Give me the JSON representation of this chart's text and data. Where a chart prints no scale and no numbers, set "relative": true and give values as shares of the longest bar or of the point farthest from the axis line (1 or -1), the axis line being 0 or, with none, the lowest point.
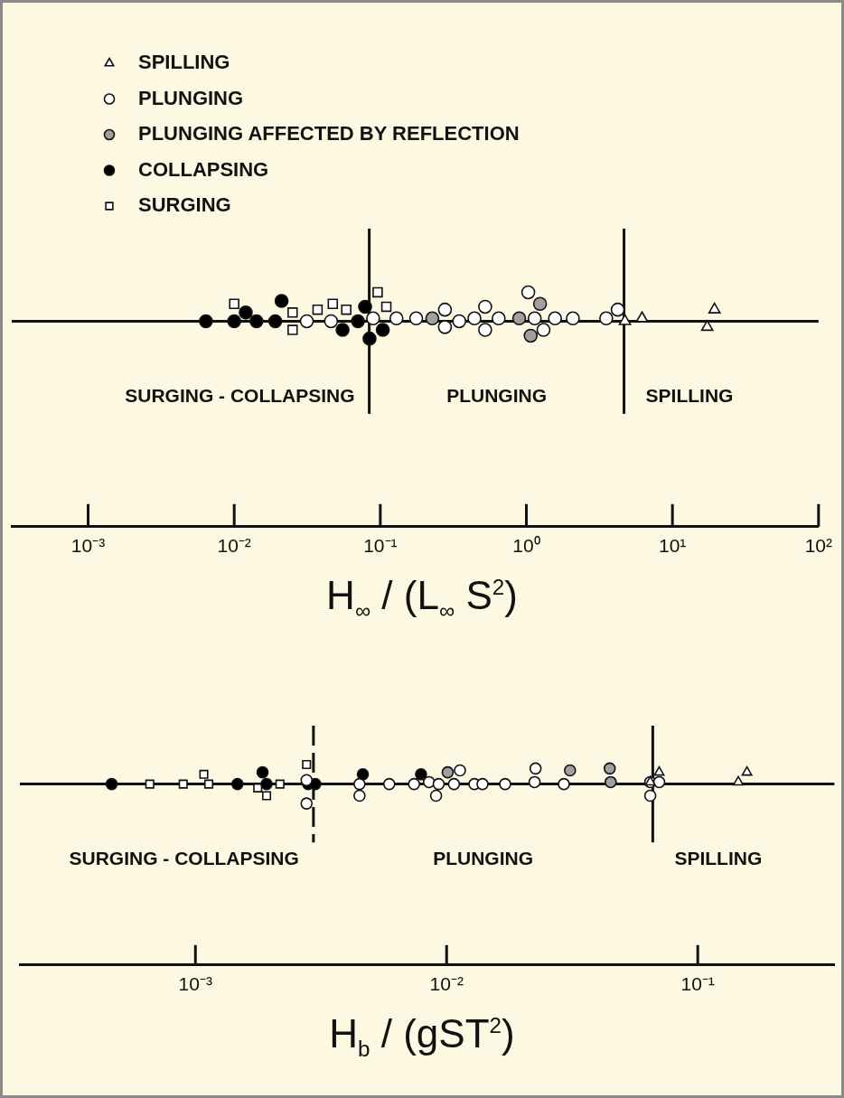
{
  "chart_data": [
    {
      "type": "scatter",
      "relative": true,
      "log": "x",
      "tick_labels": "x",
      "legend": "top left",
      "xlabel": "H$_{∞}$ / (L$_{∞}$ S$^{2}$)",
      "xlim": [
        0.0003,
        100
      ],
      "xticks": [
        {
          "value": 0.001,
          "label": "10⁻³"
        },
        {
          "value": 0.01,
          "label": "10⁻²"
        },
        {
          "value": 0.1,
          "label": "10⁻¹"
        },
        {
          "value": 1,
          "label": "10⁰"
        },
        {
          "value": 10,
          "label": "10¹"
        },
        {
          "value": 100,
          "label": "10²"
        }
      ],
      "series": [
        {
          "name": "SPILLING",
          "marker": "triangle",
          "color": "#ffffff",
          "x": [
            4.73,
            6.19,
            19.4,
            17.3
          ],
          "values": [
            0,
            0.1,
            0.4,
            -0.2
          ]
        },
        {
          "name": "PLUNGING",
          "marker": "circle",
          "color": "#ffffff",
          "x": [
            0.0314,
            0.046,
            0.0893,
            0.129,
            0.176,
            0.277,
            0.277,
            0.347,
            0.441,
            0.522,
            0.522,
            0.646,
            1.03,
            1.14,
            1.31,
            1.57,
            2.08,
            3.52,
            4.22
          ],
          "values": [
            0,
            0,
            0.1,
            0.1,
            0.1,
            0.4,
            -0.2,
            0,
            0.1,
            0.5,
            -0.3,
            0.1,
            1,
            0.1,
            -0.3,
            0.1,
            0.1,
            0.1,
            0.4
          ]
        },
        {
          "name": "PLUNGING AFFECTED BY REFLECTION",
          "marker": "circle",
          "color": "#a0a0a0",
          "x": [
            0.227,
            0.893,
            1.24,
            1.07
          ],
          "values": [
            0.1,
            0.1,
            0.6,
            -0.5
          ]
        },
        {
          "name": "COLLAPSING",
          "marker": "circle",
          "color": "#000000",
          "x": [
            0.0064,
            0.01,
            0.012,
            0.0142,
            0.0191,
            0.0211,
            0.0552,
            0.0703,
            0.0787,
            0.0844,
            0.104
          ],
          "values": [
            0,
            0,
            0.3,
            0,
            0,
            0.7,
            -0.3,
            0,
            0.5,
            -0.6,
            -0.3
          ]
        },
        {
          "name": "SURGING",
          "marker": "square",
          "color": "#ffffff",
          "x": [
            0.01,
            0.0251,
            0.0251,
            0.0372,
            0.0473,
            0.0585,
            0.0959,
            0.11
          ],
          "values": [
            0.6,
            0.3,
            -0.3,
            0.4,
            0.6,
            0.4,
            1,
            0.5
          ]
        }
      ],
      "ref_lines": [
        {
          "axis": "x",
          "value": 0.084
        },
        {
          "axis": "x",
          "value": 4.66
        }
      ],
      "annotations": [
        "SURGING - COLLAPSING",
        "PLUNGING",
        "SPILLING"
      ]
    },
    {
      "type": "scatter",
      "relative": true,
      "log": "x",
      "tick_labels": "x",
      "xlabel": "H$_{b}$ / (gST$^{2}$)",
      "xlim": [
        0.0002,
        0.35
      ],
      "xticks": [
        {
          "value": 0.001,
          "label": "10⁻³"
        },
        {
          "value": 0.01,
          "label": "10⁻²"
        },
        {
          "value": 0.1,
          "label": "10⁻¹"
        }
      ],
      "series": [
        {
          "marker": "triangle",
          "color": "#ffffff",
          "x": [
            0.0702,
            0.0647,
            0.157,
            0.145
          ],
          "values": [
            0.6,
            0.1,
            0.6,
            0.1
          ]
        },
        {
          "marker": "circle",
          "color": "#ffffff",
          "x": [
            0.00277,
            0.00277,
            0.0045,
            0.0045,
            0.00591,
            0.00742,
            0.00851,
            0.00908,
            0.0093,
            0.0113,
            0.0107,
            0.0129,
            0.0139,
            0.0171,
            0.0226,
            0.0224,
            0.0293,
            0.0647,
            0.0647,
            0.0702
          ],
          "values": [
            0.2,
            -1,
            0,
            -0.6,
            0,
            0,
            0.1,
            -0.6,
            0,
            0.7,
            0,
            0,
            0,
            0,
            0.8,
            0.1,
            0,
            0.1,
            -0.6,
            0.1
          ]
        },
        {
          "marker": "circle",
          "color": "#a0a0a0",
          "x": [
            0.0101,
            0.031,
            0.0446,
            0.045
          ],
          "values": [
            0.6,
            0.7,
            0.8,
            0.1
          ]
        },
        {
          "marker": "circle",
          "color": "#000000",
          "x": [
            0.000464,
            0.00147,
            0.00185,
            0.00192,
            0.00281,
            0.003,
            0.00464,
            0.00791
          ],
          "values": [
            0,
            0,
            0.6,
            0,
            0,
            0,
            0.5,
            0.5
          ]
        },
        {
          "marker": "square",
          "color": "#ffffff",
          "x": [
            0.000658,
            0.000894,
            0.00108,
            0.00113,
            0.00177,
            0.00192,
            0.00217,
            0.00277
          ],
          "values": [
            0,
            0,
            0.5,
            0,
            -0.2,
            -0.6,
            0,
            1
          ]
        }
      ],
      "ref_lines": [
        {
          "axis": "x",
          "value": 0.00295,
          "line_style": "dashed"
        },
        {
          "axis": "x",
          "value": 0.0662
        }
      ],
      "annotations": [
        "SURGING - COLLAPSING",
        "PLUNGING",
        "SPILLING"
      ]
    }
  ]
}
